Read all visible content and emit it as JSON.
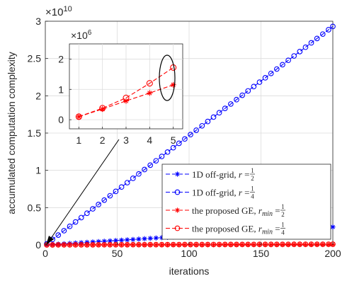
{
  "chart_data": {
    "type": "line",
    "xlabel": "iterations",
    "ylabel": "accumulated computation complexity",
    "xlim": [
      0,
      200
    ],
    "ylim": [
      0,
      3
    ],
    "y_multiplier_label": "×10^10",
    "x_ticks": [
      0,
      50,
      100,
      150,
      200
    ],
    "y_ticks": [
      0,
      0.5,
      1,
      1.5,
      2,
      2.5,
      3
    ],
    "grid": true,
    "legend_position": "bottom-right",
    "x": [
      1,
      5,
      9,
      13,
      17,
      21,
      25,
      29,
      33,
      37,
      41,
      45,
      49,
      53,
      57,
      61,
      65,
      69,
      73,
      77,
      81,
      85,
      89,
      93,
      97,
      101,
      105,
      109,
      113,
      117,
      121,
      125,
      129,
      133,
      137,
      141,
      145,
      149,
      153,
      157,
      161,
      165,
      169,
      173,
      177,
      181,
      185,
      189,
      193,
      197,
      200
    ],
    "series": [
      {
        "name": "1D off-grid, r = 1/2",
        "color": "#0000ff",
        "marker": "asterisk",
        "per_iteration": 0.0012
      },
      {
        "name": "1D off-grid, r = 1/4",
        "color": "#0000ff",
        "marker": "circle",
        "per_iteration": 0.01465
      },
      {
        "name": "the proposed GE, r_min = 1/2",
        "color": "#ff0000",
        "marker": "asterisk",
        "per_iteration": 2.3e-05
      },
      {
        "name": "the proposed GE, r_min = 1/4",
        "color": "#ff0000",
        "marker": "circle",
        "per_iteration": 4.6e-05
      }
    ],
    "legend_entries": [
      {
        "label": "1D off-grid, ",
        "var": "r",
        "sub": "",
        "eq": " = ",
        "num": "1",
        "den": "2",
        "color": "#0000ff",
        "marker": "asterisk"
      },
      {
        "label": "1D off-grid, ",
        "var": "r",
        "sub": "",
        "eq": " = ",
        "num": "1",
        "den": "4",
        "color": "#0000ff",
        "marker": "circle"
      },
      {
        "label": "the proposed GE, ",
        "var": "r",
        "sub": "min",
        "eq": " = ",
        "num": "1",
        "den": "2",
        "color": "#ff0000",
        "marker": "asterisk"
      },
      {
        "label": "the proposed GE, ",
        "var": "r",
        "sub": "min",
        "eq": " = ",
        "num": "1",
        "den": "4",
        "color": "#ff0000",
        "marker": "circle"
      }
    ],
    "inset": {
      "x": [
        1,
        2,
        3,
        4,
        5
      ],
      "xlim": [
        0.6,
        5.4
      ],
      "ylim": [
        -0.3,
        2.5
      ],
      "x_ticks": [
        1,
        2,
        3,
        4,
        5
      ],
      "y_ticks": [
        0,
        1,
        2
      ],
      "y_multiplier_label": "×10^6",
      "series": [
        {
          "name": "the proposed GE, r_min = 1/2",
          "color": "#ff0000",
          "marker": "asterisk",
          "values": [
            0.1,
            0.35,
            0.62,
            0.88,
            1.15
          ]
        },
        {
          "name": "the proposed GE, r_min = 1/4",
          "color": "#ff0000",
          "marker": "circle",
          "values": [
            0.1,
            0.38,
            0.72,
            1.2,
            1.72
          ]
        }
      ]
    }
  }
}
